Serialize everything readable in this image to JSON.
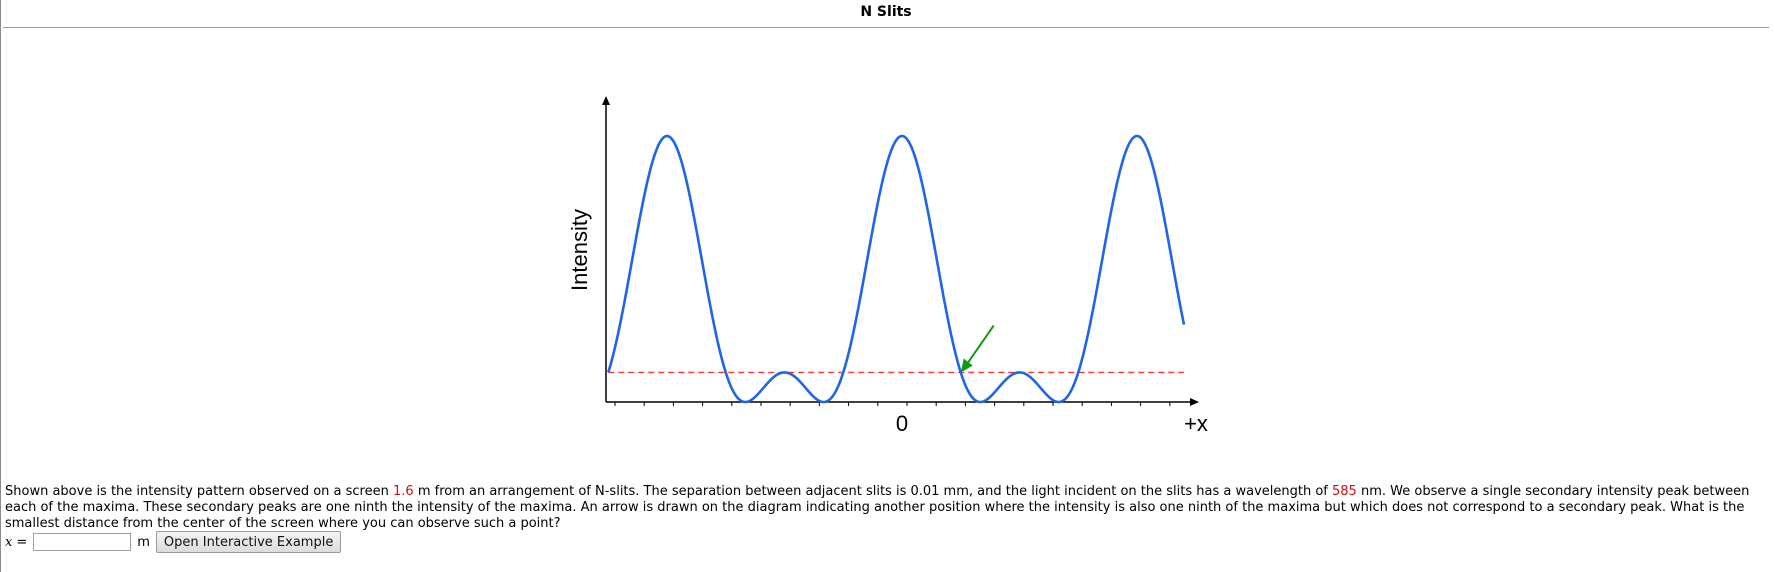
{
  "page": {
    "title": "N Slits"
  },
  "chart_data": {
    "type": "line",
    "title": "",
    "ylabel": "Intensity",
    "xlabel": "+x",
    "x_tick_labels": [
      "0"
    ],
    "description_markers": {
      "reference_level": 0.1111,
      "reference_level_color": "#ff3333",
      "arrow_color": "#119911"
    },
    "series": [
      {
        "color": "#1f66e6",
        "formula": "three-slit interference intensity (sin(3u)/sin(u))^2 / 9",
        "x_range_fringes": [
          -1.25,
          1.2
        ],
        "peaks_at_fringes": [
          -1,
          0,
          1
        ],
        "secondary_peak_value": 0.1111
      }
    ],
    "ylim": [
      0,
      1.05
    ],
    "grid": false
  },
  "problem": {
    "p1": "Shown above is the intensity pattern observed on a screen ",
    "v_distance": "1.6",
    "p2": " m from an arrangement of N-slits. The separation between adjacent slits is 0.01 mm, and the light incident on the slits has a wavelength of ",
    "v_wavelength": "585",
    "p3": " nm. We observe a single secondary intensity peak between each of the maxima. These secondary peaks are one ninth the intensity of the maxima. An arrow is drawn on the diagram indicating another position where the intensity is also one ninth of the maxima but which does not correspond to a secondary peak. What is the smallest distance from the center of the screen where you can observe such a point?"
  },
  "answer": {
    "var_label": "x",
    "equals": "=",
    "value": "",
    "placeholder": "",
    "unit": "m",
    "button_label": "Open Interactive Example"
  }
}
